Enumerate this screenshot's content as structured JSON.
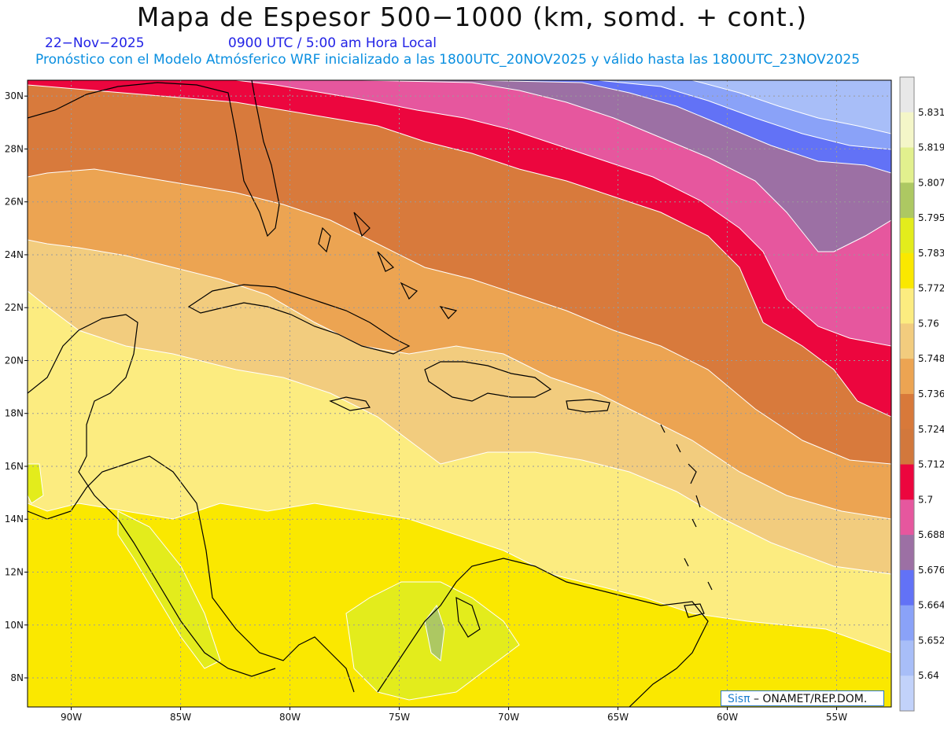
{
  "header": {
    "title": "Mapa de Espesor 500−1000 (km, somd. + cont.)",
    "date": "22−Nov−2025",
    "time": "0900 UTC / 5:00 am Hora Local",
    "forecast_line": "Pronóstico con el Modelo Atmósferico WRF inicializado a las 1800UTC_20NOV2025 y válido hasta las  1800UTC_23NOV2025"
  },
  "map": {
    "lat_range": [
      6.9,
      30.6
    ],
    "lon_range": [
      -92.0,
      -52.5
    ],
    "lat_labels": [
      "30N",
      "28N",
      "26N",
      "24N",
      "22N",
      "20N",
      "18N",
      "16N",
      "14N",
      "12N",
      "10N",
      "8N"
    ],
    "lon_labels": [
      "90W",
      "85W",
      "80W",
      "75W",
      "70W",
      "65W",
      "60W",
      "55W"
    ]
  },
  "colorbar": {
    "labels": [
      "5.831",
      "5.819",
      "5.807",
      "5.795",
      "5.783",
      "5.772",
      "5.76",
      "5.748",
      "5.736",
      "5.724",
      "5.712",
      "5.7",
      "5.688",
      "5.676",
      "5.664",
      "5.652",
      "5.64"
    ],
    "colors": [
      "#e8e8e8",
      "#f4f6c8",
      "#e2f08e",
      "#adc862",
      "#e3ec1c",
      "#fae800",
      "#fcec80",
      "#f2cc7e",
      "#eca452",
      "#d8793a",
      "#d2783c",
      "#ec063e",
      "#e6579e",
      "#9c70a4",
      "#6272f6",
      "#8aa2f8",
      "#a8bef8",
      "#c2d2fa"
    ]
  },
  "credit": {
    "logo": "Sisπ",
    "text": "– ONAMET/REP.DOM."
  }
}
